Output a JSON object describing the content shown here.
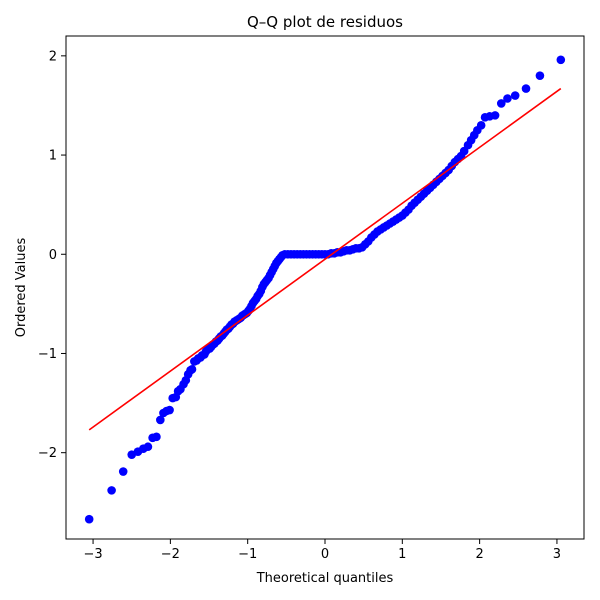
{
  "chart_data": {
    "type": "scatter",
    "title": "Q–Q plot de residuos",
    "xlabel": "Theoretical quantiles",
    "ylabel": "Ordered Values",
    "xlim": [
      -3.35,
      3.35
    ],
    "ylim": [
      -2.87,
      2.2
    ],
    "x_ticks": [
      -3,
      -2,
      -1,
      0,
      1,
      2,
      3
    ],
    "x_tick_labels": [
      "−3",
      "−2",
      "−1",
      "0",
      "1",
      "2",
      "3"
    ],
    "y_ticks": [
      -2,
      -1,
      0,
      1,
      2
    ],
    "y_tick_labels": [
      "−2",
      "−1",
      "0",
      "1",
      "2"
    ],
    "grid": false,
    "point_color": "#0000ff",
    "line_color": "#ff0000",
    "fit_line": {
      "x": [
        -3.05,
        3.05
      ],
      "y": [
        -1.77,
        1.67
      ]
    },
    "points": [
      [
        -3.05,
        -2.67
      ],
      [
        -2.76,
        -2.38
      ],
      [
        -2.61,
        -2.19
      ],
      [
        -2.5,
        -2.02
      ],
      [
        -2.42,
        -1.99
      ],
      [
        -2.35,
        -1.96
      ],
      [
        -2.29,
        -1.94
      ],
      [
        -2.23,
        -1.85
      ],
      [
        -2.18,
        -1.84
      ],
      [
        -2.13,
        -1.67
      ],
      [
        -2.09,
        -1.6
      ],
      [
        -2.05,
        -1.58
      ],
      [
        -2.01,
        -1.57
      ],
      [
        -1.97,
        -1.45
      ],
      [
        -1.93,
        -1.44
      ],
      [
        -1.9,
        -1.38
      ],
      [
        -1.87,
        -1.36
      ],
      [
        -1.83,
        -1.31
      ],
      [
        -1.8,
        -1.27
      ],
      [
        -1.77,
        -1.21
      ],
      [
        -1.74,
        -1.17
      ],
      [
        -1.72,
        -1.16
      ],
      [
        -1.69,
        -1.08
      ],
      [
        -1.66,
        -1.07
      ],
      [
        -1.64,
        -1.05
      ],
      [
        -1.61,
        -1.04
      ],
      [
        -1.59,
        -1.02
      ],
      [
        -1.56,
        -1.01
      ],
      [
        -1.54,
        -0.98
      ],
      [
        -1.52,
        -0.96
      ],
      [
        -1.49,
        -0.95
      ],
      [
        -1.47,
        -0.93
      ],
      [
        -1.45,
        -0.91
      ],
      [
        -1.43,
        -0.9
      ],
      [
        -1.41,
        -0.88
      ],
      [
        -1.39,
        -0.87
      ],
      [
        -1.37,
        -0.85
      ],
      [
        -1.35,
        -0.83
      ],
      [
        -1.33,
        -0.82
      ],
      [
        -1.31,
        -0.8
      ],
      [
        -1.29,
        -0.78
      ],
      [
        -1.27,
        -0.76
      ],
      [
        -1.25,
        -0.75
      ],
      [
        -1.23,
        -0.73
      ],
      [
        -1.21,
        -0.71
      ],
      [
        -1.19,
        -0.7
      ],
      [
        -1.17,
        -0.68
      ],
      [
        -1.15,
        -0.67
      ],
      [
        -1.13,
        -0.66
      ],
      [
        -1.11,
        -0.65
      ],
      [
        -1.09,
        -0.64
      ],
      [
        -1.07,
        -0.62
      ],
      [
        -1.05,
        -0.61
      ],
      [
        -1.03,
        -0.6
      ],
      [
        -1.01,
        -0.59
      ],
      [
        -0.99,
        -0.57
      ],
      [
        -0.97,
        -0.55
      ],
      [
        -0.95,
        -0.52
      ],
      [
        -0.93,
        -0.49
      ],
      [
        -0.91,
        -0.47
      ],
      [
        -0.89,
        -0.45
      ],
      [
        -0.87,
        -0.42
      ],
      [
        -0.85,
        -0.4
      ],
      [
        -0.83,
        -0.37
      ],
      [
        -0.81,
        -0.33
      ],
      [
        -0.79,
        -0.3
      ],
      [
        -0.77,
        -0.28
      ],
      [
        -0.75,
        -0.26
      ],
      [
        -0.73,
        -0.24
      ],
      [
        -0.71,
        -0.21
      ],
      [
        -0.69,
        -0.18
      ],
      [
        -0.67,
        -0.15
      ],
      [
        -0.65,
        -0.12
      ],
      [
        -0.63,
        -0.09
      ],
      [
        -0.61,
        -0.07
      ],
      [
        -0.59,
        -0.05
      ],
      [
        -0.57,
        -0.03
      ],
      [
        -0.55,
        -0.01
      ],
      [
        -0.52,
        0
      ],
      [
        -0.48,
        0
      ],
      [
        -0.44,
        0
      ],
      [
        -0.4,
        0
      ],
      [
        -0.36,
        0
      ],
      [
        -0.32,
        0
      ],
      [
        -0.28,
        0
      ],
      [
        -0.24,
        0
      ],
      [
        -0.2,
        0
      ],
      [
        -0.16,
        0
      ],
      [
        -0.12,
        0
      ],
      [
        -0.08,
        0
      ],
      [
        -0.04,
        0
      ],
      [
        0,
        0
      ],
      [
        0.04,
        0
      ],
      [
        0.08,
        0.01
      ],
      [
        0.12,
        0.01
      ],
      [
        0.16,
        0.02
      ],
      [
        0.2,
        0.02
      ],
      [
        0.24,
        0.03
      ],
      [
        0.28,
        0.04
      ],
      [
        0.32,
        0.04
      ],
      [
        0.36,
        0.05
      ],
      [
        0.4,
        0.06
      ],
      [
        0.44,
        0.06
      ],
      [
        0.48,
        0.07
      ],
      [
        0.52,
        0.1
      ],
      [
        0.56,
        0.13
      ],
      [
        0.6,
        0.17
      ],
      [
        0.64,
        0.2
      ],
      [
        0.68,
        0.23
      ],
      [
        0.72,
        0.25
      ],
      [
        0.76,
        0.27
      ],
      [
        0.8,
        0.29
      ],
      [
        0.84,
        0.31
      ],
      [
        0.88,
        0.33
      ],
      [
        0.92,
        0.35
      ],
      [
        0.96,
        0.37
      ],
      [
        1.0,
        0.39
      ],
      [
        1.04,
        0.42
      ],
      [
        1.08,
        0.45
      ],
      [
        1.12,
        0.49
      ],
      [
        1.16,
        0.52
      ],
      [
        1.2,
        0.55
      ],
      [
        1.24,
        0.58
      ],
      [
        1.28,
        0.61
      ],
      [
        1.32,
        0.64
      ],
      [
        1.36,
        0.67
      ],
      [
        1.4,
        0.7
      ],
      [
        1.44,
        0.73
      ],
      [
        1.48,
        0.76
      ],
      [
        1.52,
        0.79
      ],
      [
        1.56,
        0.82
      ],
      [
        1.6,
        0.85
      ],
      [
        1.64,
        0.89
      ],
      [
        1.68,
        0.93
      ],
      [
        1.72,
        0.96
      ],
      [
        1.76,
        0.99
      ],
      [
        1.8,
        1.04
      ],
      [
        1.85,
        1.1
      ],
      [
        1.89,
        1.15
      ],
      [
        1.93,
        1.2
      ],
      [
        1.97,
        1.25
      ],
      [
        2.02,
        1.3
      ],
      [
        2.07,
        1.38
      ],
      [
        2.13,
        1.39
      ],
      [
        2.2,
        1.4
      ],
      [
        2.28,
        1.52
      ],
      [
        2.36,
        1.57
      ],
      [
        2.46,
        1.6
      ],
      [
        2.6,
        1.67
      ],
      [
        2.78,
        1.8
      ],
      [
        3.05,
        1.96
      ]
    ]
  }
}
